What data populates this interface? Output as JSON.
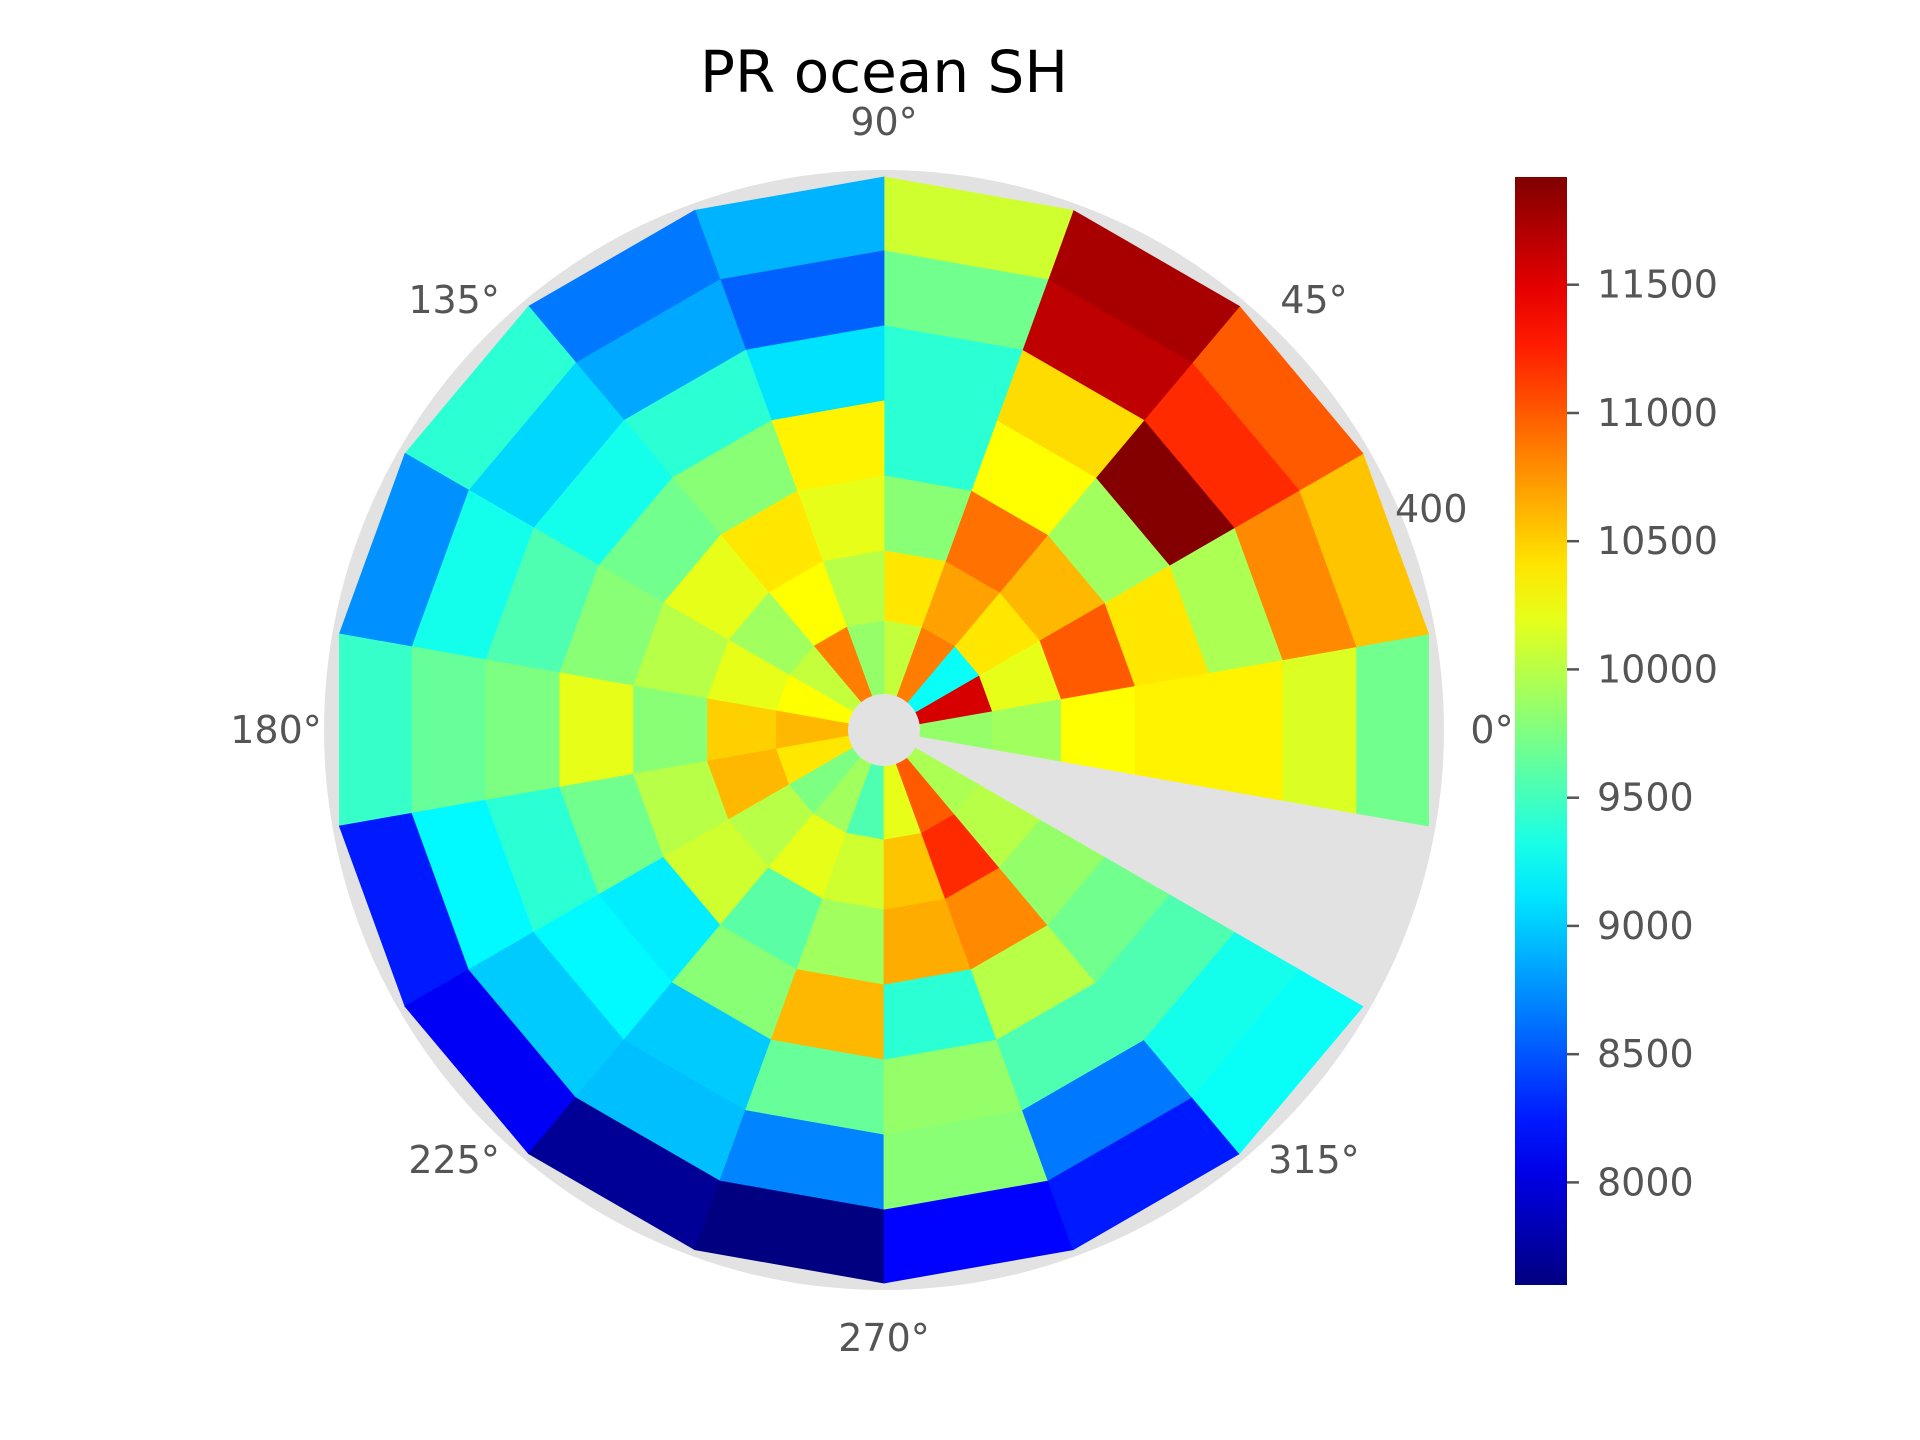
{
  "chart_data": {
    "type": "heatmap",
    "projection": "polar",
    "title": "PR ocean SH",
    "angle_tick_labels": [
      "0°",
      "45°",
      "90°",
      "135°",
      "180°",
      "225°",
      "270°",
      "315°"
    ],
    "radial_tick_labels": [
      "400"
    ],
    "sector_edges_deg": [
      -10,
      10,
      30,
      50,
      70,
      90,
      110,
      130,
      150,
      170,
      190,
      210,
      230,
      250,
      270,
      290,
      310,
      330,
      350
    ],
    "ring_labels": [
      "ring1",
      "ring2",
      "ring3",
      "ring4",
      "ring5",
      "ring6",
      "ring7"
    ],
    "values": [
      [
        9850,
        11550,
        9250,
        10850,
        10050,
        9850,
        10850,
        10050,
        10300,
        10600,
        10400,
        9750,
        9900,
        9550,
        10200,
        11000,
        9950
      ],
      [
        9900,
        10200,
        10400,
        10700,
        10400,
        10000,
        10300,
        9900,
        10200,
        10500,
        10600,
        10000,
        10200,
        10100,
        10550,
        11200,
        10000
      ],
      [
        10300,
        11000,
        10600,
        10900,
        9800,
        10200,
        10400,
        10200,
        10000,
        9800,
        10000,
        10100,
        9600,
        9900,
        10650,
        10800,
        9850
      ],
      [
        10350,
        10400,
        9900,
        10300,
        9400,
        10350,
        9800,
        9700,
        9800,
        10200,
        9700,
        9150,
        9800,
        10600,
        9400,
        10000,
        9700
      ],
      [
        10350,
        9950,
        11900,
        10450,
        9400,
        9100,
        9400,
        9300,
        9550,
        9750,
        9400,
        9200,
        9000,
        9650,
        9850,
        9550,
        9550
      ],
      [
        10150,
        10800,
        11200,
        11650,
        9700,
        8550,
        8850,
        9050,
        9300,
        9650,
        9200,
        9000,
        8950,
        8700,
        9800,
        8650,
        9300
      ],
      [
        9700,
        10550,
        11000,
        11750,
        10100,
        8900,
        8650,
        9400,
        8750,
        9450,
        8250,
        8100,
        7700,
        7600,
        8150,
        8250,
        9250
      ]
    ],
    "missing_sector_deg": [
      170,
      190
    ],
    "colorbar": {
      "colormap": "jet",
      "min": 7600,
      "max": 11920,
      "ticks": [
        8000,
        8500,
        9000,
        9500,
        10000,
        10500,
        11000,
        11500
      ],
      "tick_labels": [
        "8000",
        "8500",
        "9000",
        "9500",
        "10000",
        "10500",
        "11000",
        "11500"
      ]
    },
    "grid": false,
    "colors": {
      "missing": "#e2e2e2",
      "background": "#ffffff",
      "text": "#555555"
    }
  }
}
